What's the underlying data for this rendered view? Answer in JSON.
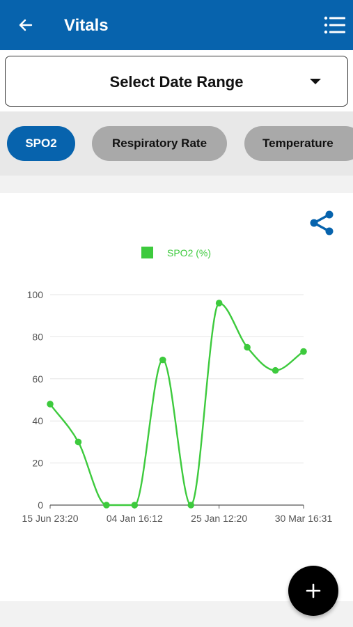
{
  "header": {
    "title": "Vitals",
    "bg_color": "#0763ad",
    "back_icon": "back-arrow-icon",
    "menu_icon": "list-menu-icon"
  },
  "date_range": {
    "label": "Select Date Range",
    "icon": "caret-down-icon"
  },
  "tabs": [
    {
      "label": "SPO2",
      "active": true
    },
    {
      "label": "Respiratory Rate",
      "active": false
    },
    {
      "label": "Temperature",
      "active": false
    }
  ],
  "share_icon": "share-icon",
  "fab_icon": "plus-icon",
  "chart_data": {
    "type": "line",
    "series": [
      {
        "name": "SPO2 (%)",
        "color": "#3dca3d",
        "values": [
          48,
          30,
          0,
          0,
          69,
          0,
          96,
          75,
          64,
          73
        ]
      }
    ],
    "x_tick_labels": [
      "15 Jun 23:20",
      "04 Jan 16:12",
      "25 Jan 12:20",
      "30 Mar 16:31"
    ],
    "y_ticks": [
      0,
      20,
      40,
      60,
      80,
      100
    ],
    "ylim": [
      0,
      100
    ],
    "legend_position": "top-center",
    "grid": true,
    "smooth": true
  }
}
